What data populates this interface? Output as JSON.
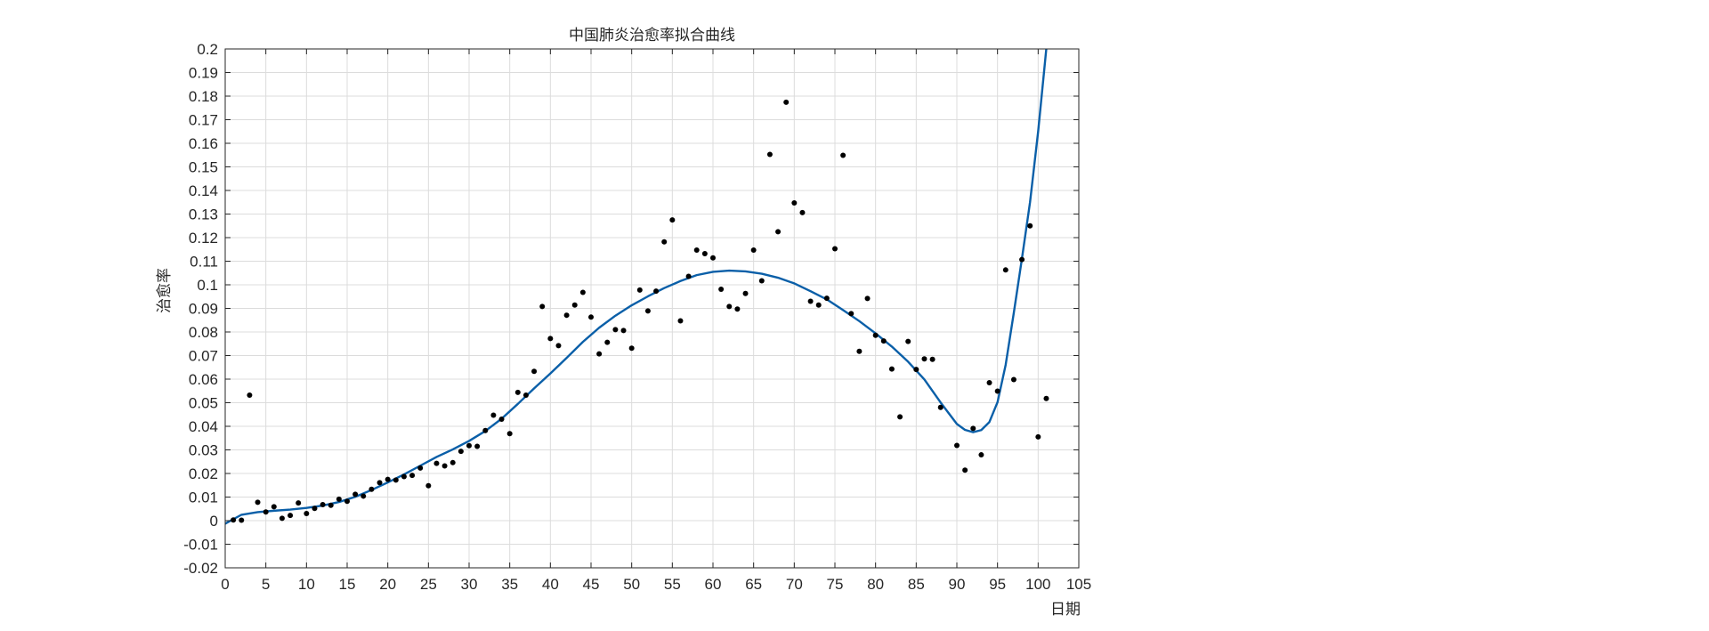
{
  "chart_data": {
    "type": "scatter",
    "title": "中国肺炎治愈率拟合曲线",
    "xlabel": "日期",
    "ylabel": "治愈率",
    "xlim": [
      0,
      105
    ],
    "ylim": [
      -0.02,
      0.2
    ],
    "grid": true,
    "x_ticks": [
      0,
      5,
      10,
      15,
      20,
      25,
      30,
      35,
      40,
      45,
      50,
      55,
      60,
      65,
      70,
      75,
      80,
      85,
      90,
      95,
      100,
      105
    ],
    "y_ticks": [
      -0.02,
      -0.01,
      0,
      0.01,
      0.02,
      0.03,
      0.04,
      0.05,
      0.06,
      0.07,
      0.08,
      0.09,
      0.1,
      0.11,
      0.12,
      0.13,
      0.14,
      0.15,
      0.16,
      0.17,
      0.18,
      0.19,
      0.2
    ],
    "x_tick_labels": [
      "0",
      "5",
      "10",
      "15",
      "20",
      "25",
      "30",
      "35",
      "40",
      "45",
      "50",
      "55",
      "60",
      "65",
      "70",
      "75",
      "80",
      "85",
      "90",
      "95",
      "100",
      "105"
    ],
    "y_tick_labels": [
      "-0.02",
      "-0.01",
      "0",
      "0.01",
      "0.02",
      "0.03",
      "0.04",
      "0.05",
      "0.06",
      "0.07",
      "0.08",
      "0.09",
      "0.1",
      "0.11",
      "0.12",
      "0.13",
      "0.14",
      "0.15",
      "0.16",
      "0.17",
      "0.18",
      "0.19",
      "0.2"
    ],
    "colors": {
      "points": "#000000",
      "fit": "#0a5fa8",
      "grid": "#dcdcdc",
      "axis": "#262626"
    },
    "points": [
      [
        1,
        0.0003
      ],
      [
        2,
        0.0002
      ],
      [
        3,
        0.0532
      ],
      [
        4,
        0.0078
      ],
      [
        5,
        0.0037
      ],
      [
        6,
        0.0059
      ],
      [
        7,
        0.001
      ],
      [
        8,
        0.0022
      ],
      [
        9,
        0.0075
      ],
      [
        10,
        0.003
      ],
      [
        11,
        0.0052
      ],
      [
        12,
        0.0068
      ],
      [
        13,
        0.0065
      ],
      [
        14,
        0.0091
      ],
      [
        15,
        0.0082
      ],
      [
        16,
        0.0112
      ],
      [
        17,
        0.0104
      ],
      [
        18,
        0.0133
      ],
      [
        19,
        0.0161
      ],
      [
        20,
        0.0175
      ],
      [
        21,
        0.0172
      ],
      [
        22,
        0.0187
      ],
      [
        23,
        0.0192
      ],
      [
        24,
        0.0223
      ],
      [
        25,
        0.0148
      ],
      [
        26,
        0.0243
      ],
      [
        27,
        0.0232
      ],
      [
        28,
        0.0246
      ],
      [
        29,
        0.0294
      ],
      [
        30,
        0.0318
      ],
      [
        31,
        0.0315
      ],
      [
        32,
        0.0382
      ],
      [
        33,
        0.0447
      ],
      [
        34,
        0.043
      ],
      [
        35,
        0.0369
      ],
      [
        36,
        0.0544
      ],
      [
        37,
        0.0532
      ],
      [
        38,
        0.0633
      ],
      [
        39,
        0.0908
      ],
      [
        40,
        0.0772
      ],
      [
        41,
        0.0742
      ],
      [
        42,
        0.0871
      ],
      [
        43,
        0.0914
      ],
      [
        44,
        0.0968
      ],
      [
        45,
        0.0863
      ],
      [
        46,
        0.0707
      ],
      [
        47,
        0.0756
      ],
      [
        48,
        0.081
      ],
      [
        49,
        0.0806
      ],
      [
        50,
        0.0731
      ],
      [
        51,
        0.0978
      ],
      [
        52,
        0.0889
      ],
      [
        53,
        0.0973
      ],
      [
        54,
        0.1182
      ],
      [
        55,
        0.1275
      ],
      [
        56,
        0.0847
      ],
      [
        57,
        0.1036
      ],
      [
        58,
        0.1147
      ],
      [
        59,
        0.1132
      ],
      [
        60,
        0.1114
      ],
      [
        61,
        0.0981
      ],
      [
        62,
        0.0908
      ],
      [
        63,
        0.0897
      ],
      [
        64,
        0.0963
      ],
      [
        65,
        0.1147
      ],
      [
        66,
        0.1017
      ],
      [
        67,
        0.1553
      ],
      [
        68,
        0.1225
      ],
      [
        69,
        0.1774
      ],
      [
        70,
        0.1347
      ],
      [
        71,
        0.1306
      ],
      [
        72,
        0.093
      ],
      [
        73,
        0.0914
      ],
      [
        74,
        0.0943
      ],
      [
        75,
        0.1153
      ],
      [
        76,
        0.1549
      ],
      [
        77,
        0.0878
      ],
      [
        78,
        0.0718
      ],
      [
        79,
        0.0942
      ],
      [
        80,
        0.0786
      ],
      [
        81,
        0.0762
      ],
      [
        82,
        0.0643
      ],
      [
        83,
        0.044
      ],
      [
        84,
        0.076
      ],
      [
        85,
        0.0641
      ],
      [
        86,
        0.0686
      ],
      [
        87,
        0.0684
      ],
      [
        88,
        0.048
      ],
      [
        90,
        0.0319
      ],
      [
        91,
        0.0214
      ],
      [
        92,
        0.0391
      ],
      [
        93,
        0.0279
      ],
      [
        94,
        0.0585
      ],
      [
        95,
        0.0549
      ],
      [
        96,
        0.1063
      ],
      [
        97,
        0.0598
      ],
      [
        98,
        0.1107
      ],
      [
        99,
        0.125
      ],
      [
        100,
        0.0355
      ],
      [
        101,
        0.0518
      ]
    ],
    "fit_curve": [
      [
        0,
        -0.0013
      ],
      [
        2,
        0.0025
      ],
      [
        4,
        0.0036
      ],
      [
        6,
        0.0042
      ],
      [
        8,
        0.0047
      ],
      [
        10,
        0.0054
      ],
      [
        12,
        0.0064
      ],
      [
        14,
        0.0079
      ],
      [
        16,
        0.0101
      ],
      [
        18,
        0.013
      ],
      [
        20,
        0.0162
      ],
      [
        22,
        0.0196
      ],
      [
        24,
        0.0233
      ],
      [
        26,
        0.027
      ],
      [
        28,
        0.0302
      ],
      [
        30,
        0.0338
      ],
      [
        32,
        0.038
      ],
      [
        34,
        0.0432
      ],
      [
        36,
        0.0495
      ],
      [
        38,
        0.0561
      ],
      [
        40,
        0.0624
      ],
      [
        42,
        0.069
      ],
      [
        44,
        0.0758
      ],
      [
        46,
        0.0818
      ],
      [
        48,
        0.0869
      ],
      [
        50,
        0.0913
      ],
      [
        52,
        0.0951
      ],
      [
        54,
        0.0986
      ],
      [
        56,
        0.1016
      ],
      [
        58,
        0.1041
      ],
      [
        60,
        0.1055
      ],
      [
        62,
        0.106
      ],
      [
        64,
        0.1057
      ],
      [
        66,
        0.1047
      ],
      [
        68,
        0.103
      ],
      [
        70,
        0.1006
      ],
      [
        72,
        0.0973
      ],
      [
        74,
        0.0938
      ],
      [
        76,
        0.0893
      ],
      [
        78,
        0.0846
      ],
      [
        80,
        0.0794
      ],
      [
        82,
        0.0738
      ],
      [
        84,
        0.0674
      ],
      [
        86,
        0.0599
      ],
      [
        88,
        0.0501
      ],
      [
        90,
        0.041
      ],
      [
        91,
        0.0385
      ],
      [
        92,
        0.0375
      ],
      [
        93,
        0.0384
      ],
      [
        94,
        0.0418
      ],
      [
        95,
        0.0502
      ],
      [
        96,
        0.066
      ],
      [
        97,
        0.088
      ],
      [
        98,
        0.111
      ],
      [
        99,
        0.135
      ],
      [
        100,
        0.165
      ],
      [
        101,
        0.2
      ]
    ]
  }
}
